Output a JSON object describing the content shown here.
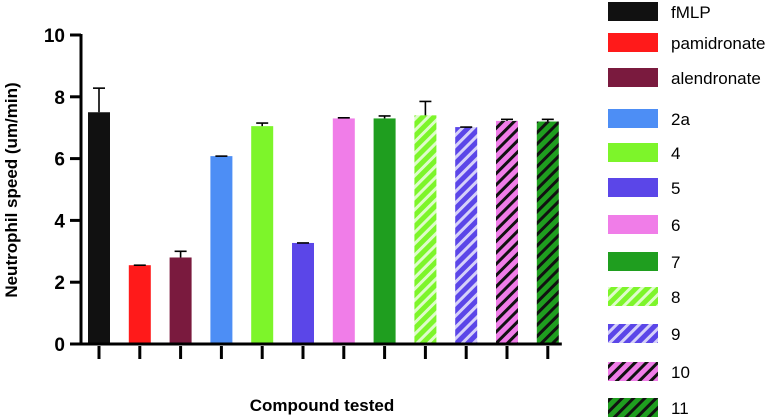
{
  "chart_data": {
    "type": "bar",
    "title": "",
    "xlabel": "Compound tested",
    "ylabel": "Neutrophil speed (um/min)",
    "ylim": [
      0,
      10
    ],
    "yticks": [
      0,
      2,
      4,
      6,
      8,
      10
    ],
    "grid": false,
    "legend_position": "right",
    "series": [
      {
        "name": "fMLP",
        "value": 7.5,
        "error": 0.78,
        "color": "#111111",
        "pattern": "solid"
      },
      {
        "name": "pamidronate",
        "value": 2.55,
        "error": 0,
        "color": "#ff1a1a",
        "pattern": "solid"
      },
      {
        "name": "alendronate",
        "value": 2.8,
        "error": 0.2,
        "color": "#7a1a3e",
        "pattern": "solid"
      },
      {
        "name": "2a",
        "value": 6.08,
        "error": 0,
        "color": "#4d8ef5",
        "pattern": "solid"
      },
      {
        "name": "4",
        "value": 7.05,
        "error": 0.1,
        "color": "#7df52a",
        "pattern": "solid"
      },
      {
        "name": "5",
        "value": 3.27,
        "error": 0,
        "color": "#5b46e8",
        "pattern": "solid"
      },
      {
        "name": "6",
        "value": 7.3,
        "error": 0.02,
        "color": "#f07de8",
        "pattern": "solid"
      },
      {
        "name": "7",
        "value": 7.3,
        "error": 0.08,
        "color": "#1f9e1f",
        "pattern": "solid"
      },
      {
        "name": "8",
        "value": 7.4,
        "error": 0.45,
        "color": "#7df52a",
        "pattern": "hatch-white"
      },
      {
        "name": "9",
        "value": 7.02,
        "error": 0,
        "color": "#5b46e8",
        "pattern": "hatch-white"
      },
      {
        "name": "10",
        "value": 7.22,
        "error": 0.05,
        "color": "#f07de8",
        "pattern": "hatch-black"
      },
      {
        "name": "11",
        "value": 7.2,
        "error": 0.07,
        "color": "#1f9e1f",
        "pattern": "hatch-black"
      }
    ]
  }
}
